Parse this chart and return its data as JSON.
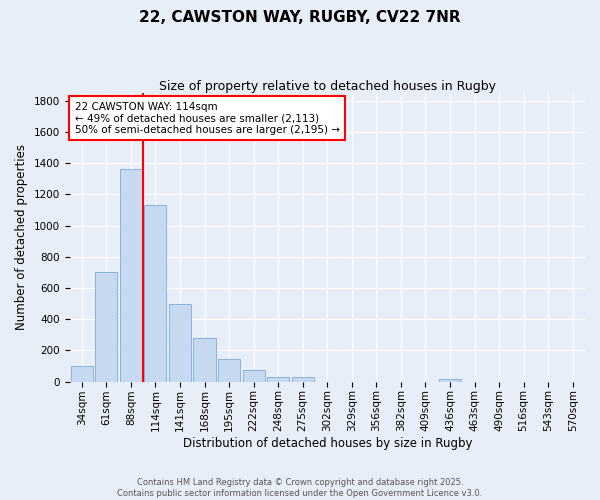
{
  "title": "22, CAWSTON WAY, RUGBY, CV22 7NR",
  "subtitle": "Size of property relative to detached houses in Rugby",
  "xlabel": "Distribution of detached houses by size in Rugby",
  "ylabel": "Number of detached properties",
  "bin_labels": [
    "34sqm",
    "61sqm",
    "88sqm",
    "114sqm",
    "141sqm",
    "168sqm",
    "195sqm",
    "222sqm",
    "248sqm",
    "275sqm",
    "302sqm",
    "329sqm",
    "356sqm",
    "382sqm",
    "409sqm",
    "436sqm",
    "463sqm",
    "490sqm",
    "516sqm",
    "543sqm",
    "570sqm"
  ],
  "bar_values": [
    103,
    703,
    1362,
    1130,
    497,
    281,
    143,
    73,
    33,
    30,
    0,
    0,
    0,
    0,
    0,
    15,
    0,
    0,
    0,
    0,
    0
  ],
  "bar_color": "#c6d9f1",
  "bar_edge_color": "#7badd6",
  "vline_index": 3,
  "vline_color": "red",
  "annotation_text": "22 CAWSTON WAY: 114sqm\n← 49% of detached houses are smaller (2,113)\n50% of semi-detached houses are larger (2,195) →",
  "annotation_box_color": "white",
  "annotation_box_edge": "red",
  "ylim": [
    0,
    1850
  ],
  "yticks": [
    0,
    200,
    400,
    600,
    800,
    1000,
    1200,
    1400,
    1600,
    1800
  ],
  "bg_color": "#e8eef8",
  "footer": "Contains HM Land Registry data © Crown copyright and database right 2025.\nContains public sector information licensed under the Open Government Licence v3.0.",
  "title_fontsize": 11,
  "subtitle_fontsize": 9,
  "xlabel_fontsize": 8.5,
  "ylabel_fontsize": 8.5,
  "tick_fontsize": 7.5,
  "annotation_fontsize": 7.5,
  "footer_fontsize": 6
}
